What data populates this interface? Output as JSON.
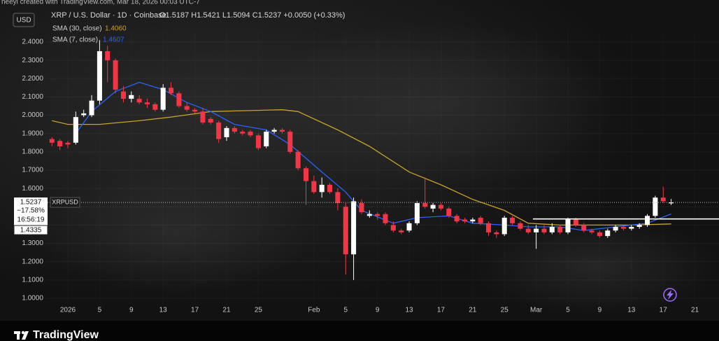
{
  "chart_data": {
    "type": "candlestick",
    "watermark": "neeyi created with TradingView.com, Mar 18, 2026 00:03 UTC-7",
    "currency": "USD",
    "title": "XRP / U.S. Dollar · 1D · Coinbase",
    "ohlc_text": "O1.5187 H1.5421 L1.5094 C1.5237 +0.0050 (+0.33%)",
    "symbol": "XRPUSD",
    "up_color": "#ffffff",
    "down_color": "#f23645",
    "x": [
      -2,
      -1,
      0,
      1,
      2,
      3,
      4,
      5,
      6,
      7,
      8,
      9,
      10,
      11,
      12,
      13,
      14,
      15,
      16,
      17,
      18,
      19,
      20,
      21,
      22,
      23,
      24,
      25,
      26,
      27,
      28,
      29,
      30,
      31,
      32,
      33,
      34,
      35,
      36,
      37,
      38,
      39,
      40,
      41,
      42,
      43,
      44,
      45,
      46,
      47,
      48,
      49,
      50,
      51,
      52,
      53,
      54,
      55,
      56,
      57,
      58,
      59,
      60,
      61,
      62,
      63,
      64,
      65,
      66,
      67,
      68,
      69,
      70,
      71,
      72,
      73,
      74,
      75,
      76
    ],
    "open": [
      1.87,
      1.86,
      1.85,
      1.85,
      2.0,
      2.0,
      2.08,
      2.35,
      2.3,
      2.13,
      2.09,
      2.09,
      2.07,
      2.06,
      2.03,
      2.15,
      2.12,
      2.05,
      2.03,
      2.02,
      1.98,
      1.96,
      1.88,
      1.93,
      1.91,
      1.91,
      1.89,
      1.83,
      1.91,
      1.92,
      1.91,
      1.8,
      1.71,
      1.64,
      1.58,
      1.62,
      1.58,
      1.5,
      1.24,
      1.52,
      1.45,
      1.46,
      1.46,
      1.4,
      1.37,
      1.37,
      1.41,
      1.52,
      1.49,
      1.51,
      1.49,
      1.45,
      1.43,
      1.42,
      1.44,
      1.41,
      1.36,
      1.35,
      1.44,
      1.41,
      1.38,
      1.36,
      1.38,
      1.36,
      1.39,
      1.36,
      1.43,
      1.4,
      1.37,
      1.36,
      1.34,
      1.37,
      1.39,
      1.38,
      1.39,
      1.4,
      1.45,
      1.55,
      1.5187
    ],
    "high": [
      1.88,
      1.87,
      1.86,
      2.02,
      2.03,
      2.11,
      2.41,
      2.38,
      2.31,
      2.16,
      2.13,
      2.11,
      2.09,
      2.07,
      2.17,
      2.18,
      2.13,
      2.07,
      2.04,
      2.04,
      1.99,
      1.97,
      1.94,
      1.94,
      1.92,
      1.92,
      1.9,
      1.92,
      1.93,
      1.93,
      1.92,
      1.81,
      1.72,
      1.67,
      1.66,
      1.63,
      1.6,
      1.52,
      1.55,
      1.54,
      1.48,
      1.47,
      1.47,
      1.42,
      1.38,
      1.42,
      1.53,
      1.66,
      1.52,
      1.52,
      1.5,
      1.46,
      1.44,
      1.44,
      1.45,
      1.42,
      1.37,
      1.45,
      1.45,
      1.42,
      1.4,
      1.4,
      1.4,
      1.41,
      1.4,
      1.44,
      1.44,
      1.41,
      1.38,
      1.37,
      1.38,
      1.4,
      1.4,
      1.4,
      1.41,
      1.46,
      1.56,
      1.61,
      1.5421
    ],
    "low": [
      1.83,
      1.81,
      1.82,
      1.84,
      1.99,
      1.99,
      2.06,
      2.18,
      2.12,
      2.07,
      2.07,
      2.06,
      2.04,
      2.02,
      2.02,
      2.11,
      2.04,
      2.02,
      2.01,
      1.95,
      1.95,
      1.85,
      1.86,
      1.9,
      1.89,
      1.88,
      1.81,
      1.82,
      1.9,
      1.9,
      1.79,
      1.7,
      1.51,
      1.57,
      1.55,
      1.57,
      1.48,
      1.13,
      1.1,
      1.46,
      1.44,
      1.43,
      1.4,
      1.36,
      1.35,
      1.36,
      1.4,
      1.49,
      1.47,
      1.48,
      1.44,
      1.41,
      1.41,
      1.41,
      1.4,
      1.34,
      1.33,
      1.34,
      1.4,
      1.37,
      1.35,
      1.27,
      1.35,
      1.35,
      1.35,
      1.35,
      1.39,
      1.36,
      1.35,
      1.33,
      1.33,
      1.36,
      1.37,
      1.37,
      1.38,
      1.39,
      1.44,
      1.52,
      1.5094
    ],
    "close": [
      1.85,
      1.83,
      1.84,
      1.99,
      2.01,
      2.08,
      2.35,
      2.3,
      2.14,
      2.09,
      2.11,
      2.07,
      2.06,
      2.03,
      2.15,
      2.12,
      2.05,
      2.03,
      2.02,
      1.96,
      1.96,
      1.87,
      1.93,
      1.91,
      1.9,
      1.89,
      1.82,
      1.91,
      1.92,
      1.91,
      1.8,
      1.71,
      1.64,
      1.58,
      1.62,
      1.58,
      1.52,
      1.24,
      1.53,
      1.47,
      1.46,
      1.45,
      1.41,
      1.37,
      1.36,
      1.41,
      1.52,
      1.5,
      1.51,
      1.49,
      1.45,
      1.42,
      1.42,
      1.43,
      1.41,
      1.36,
      1.35,
      1.44,
      1.41,
      1.38,
      1.36,
      1.38,
      1.36,
      1.39,
      1.36,
      1.43,
      1.4,
      1.37,
      1.36,
      1.34,
      1.37,
      1.39,
      1.38,
      1.39,
      1.4,
      1.45,
      1.55,
      1.53,
      1.5237
    ],
    "series": [
      {
        "name": "SMA (30, close)",
        "color": "#c9a227",
        "last_label": "1.4060",
        "x": [
          -2,
          0,
          4,
          9,
          13,
          18,
          27,
          29,
          34,
          38,
          43,
          47,
          51,
          55,
          58,
          62,
          66,
          71,
          76
        ],
        "values": [
          1.97,
          1.95,
          1.95,
          1.97,
          1.99,
          2.02,
          2.03,
          2.02,
          1.92,
          1.83,
          1.69,
          1.62,
          1.54,
          1.48,
          1.41,
          1.4,
          1.4,
          1.4,
          1.406
        ]
      },
      {
        "name": "SMA (7, close)",
        "color": "#2962ff",
        "last_label": "1.4607",
        "x": [
          1,
          3,
          6,
          9,
          12,
          15,
          18,
          21,
          25,
          28,
          32,
          35,
          37,
          41,
          44,
          48,
          51,
          55,
          58,
          62,
          65,
          69,
          73,
          76
        ],
        "values": [
          1.9,
          2.02,
          2.13,
          2.18,
          2.14,
          2.07,
          2.02,
          1.95,
          1.92,
          1.84,
          1.69,
          1.58,
          1.48,
          1.41,
          1.44,
          1.45,
          1.41,
          1.4,
          1.39,
          1.39,
          1.37,
          1.39,
          1.41,
          1.4607
        ]
      }
    ],
    "price_line": {
      "value": 1.5237,
      "label": "1.5237"
    },
    "change_label": "−17.58%",
    "countdown": "16:56:19",
    "level_line": {
      "value": 1.4335,
      "label": "1.4335"
    },
    "xlim": [
      -2.82,
      82.03
    ],
    "ylim": [
      0.9654,
      2.4574
    ],
    "xticks": [
      {
        "value": 0,
        "label": "2026"
      },
      {
        "value": 4,
        "label": "5"
      },
      {
        "value": 8,
        "label": "9"
      },
      {
        "value": 12,
        "label": "13"
      },
      {
        "value": 16,
        "label": "17"
      },
      {
        "value": 20,
        "label": "21"
      },
      {
        "value": 24,
        "label": "25"
      },
      {
        "value": 31,
        "label": "Feb"
      },
      {
        "value": 35,
        "label": "5"
      },
      {
        "value": 39,
        "label": "9"
      },
      {
        "value": 43,
        "label": "13"
      },
      {
        "value": 47,
        "label": "17"
      },
      {
        "value": 51,
        "label": "21"
      },
      {
        "value": 55,
        "label": "25"
      },
      {
        "value": 59,
        "label": "Mar"
      },
      {
        "value": 63,
        "label": "5"
      },
      {
        "value": 67,
        "label": "9"
      },
      {
        "value": 71,
        "label": "13"
      },
      {
        "value": 75,
        "label": "17"
      },
      {
        "value": 79,
        "label": "21"
      }
    ],
    "yticks": [
      {
        "value": 1.0,
        "label": "1.0000"
      },
      {
        "value": 1.1,
        "label": "1.1000"
      },
      {
        "value": 1.2,
        "label": "1.2000"
      },
      {
        "value": 1.3,
        "label": "1.3000"
      },
      {
        "value": 1.4,
        "label": "1.4000"
      },
      {
        "value": 1.5,
        "label": "1.5000"
      },
      {
        "value": 1.6,
        "label": "1.6000"
      },
      {
        "value": 1.7,
        "label": "1.7000"
      },
      {
        "value": 1.8,
        "label": "1.8000"
      },
      {
        "value": 1.9,
        "label": "1.9000"
      },
      {
        "value": 2.0,
        "label": "2.0000"
      },
      {
        "value": 2.1,
        "label": "2.1000"
      },
      {
        "value": 2.2,
        "label": "2.2000"
      },
      {
        "value": 2.3,
        "label": "2.3000"
      },
      {
        "value": 2.4,
        "label": "2.4000"
      }
    ],
    "grid": true,
    "brand": "TradingView"
  }
}
